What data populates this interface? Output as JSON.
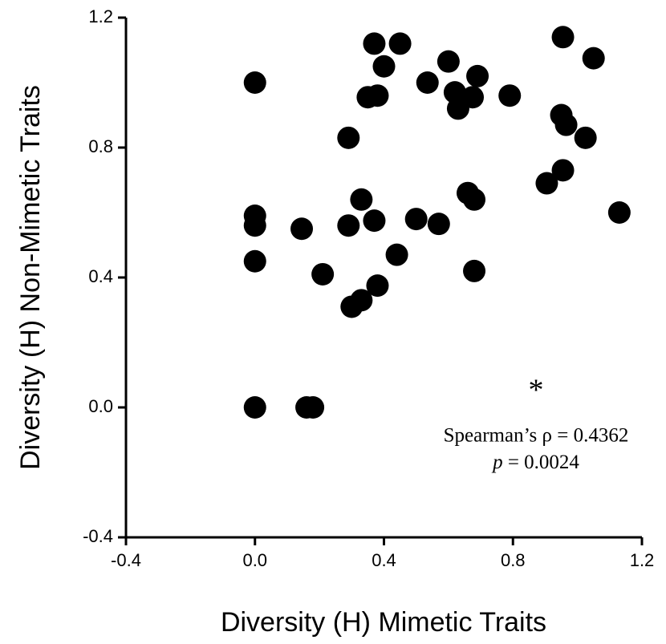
{
  "chart_data": {
    "type": "scatter",
    "xlabel": "Diversity (H) Mimetic Traits",
    "ylabel": "Diversity (H) Non-Mimetic Traits",
    "annotations": [
      "*",
      "Spearman’s ρ = 0.4362",
      "p",
      "= 0.0024"
    ],
    "color": "#000000",
    "x": [
      0,
      0,
      0,
      0,
      0,
      0.145,
      0.21,
      0.16,
      0.18,
      0.29,
      0.29,
      0.33,
      0.37,
      0.3,
      0.33,
      0.38,
      0.44,
      0.37,
      0.45,
      0.4,
      0.35,
      0.38,
      0.535,
      0.6,
      0.62,
      0.63,
      0.675,
      0.69,
      0.5,
      0.57,
      0.66,
      0.68,
      0.68,
      0.79,
      0.955,
      1.05,
      0.95,
      0.965,
      1.025,
      0.905,
      0.955,
      1.13
    ],
    "values": [
      1.0,
      0.59,
      0.56,
      0.45,
      0,
      0.55,
      0.41,
      0,
      0,
      0.83,
      0.56,
      0.64,
      0.575,
      0.31,
      0.33,
      0.375,
      0.47,
      1.12,
      1.12,
      1.05,
      0.955,
      0.96,
      1.0,
      1.065,
      0.97,
      0.92,
      0.955,
      1.02,
      0.58,
      0.565,
      0.66,
      0.64,
      0.42,
      0.96,
      1.14,
      1.075,
      0.9,
      0.87,
      0.83,
      0.69,
      0.73,
      0.6
    ],
    "xlim": [
      -0.4,
      1.2
    ],
    "ylim": [
      -0.4,
      1.2
    ],
    "xticks": [
      -0.4,
      {
        "value": 0,
        "label": "0.0"
      },
      0.4,
      0.8,
      1.2
    ],
    "yticks": [
      -0.4,
      {
        "value": 0,
        "label": "0.0"
      },
      0.4,
      0.8,
      1.2
    ]
  }
}
